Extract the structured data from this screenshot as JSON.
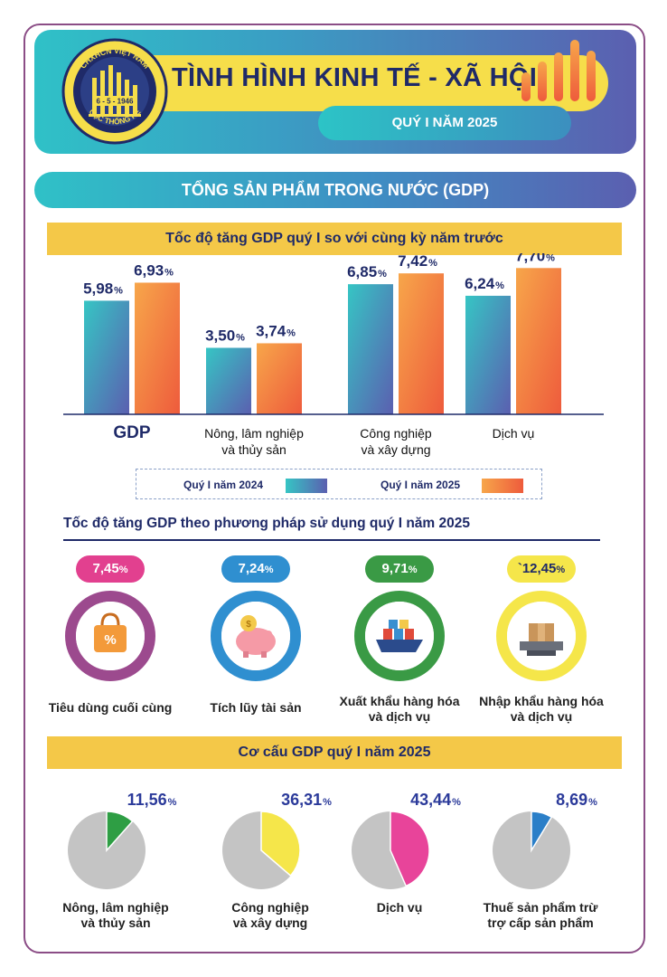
{
  "header": {
    "title": "TÌNH HÌNH KINH TẾ - XÃ HỘI",
    "subtitle": "QUÝ I NĂM 2025",
    "logo_text_top": "CHXHCN VIỆT NAM",
    "logo_text_bottom": "CỤC THỐNG KÊ",
    "logo_date": "6 - 5 - 1946"
  },
  "section_title": "TỔNG SẢN PHẨM TRONG NƯỚC (GDP)",
  "growth_title": "Tốc độ tăng GDP quý I so với cùng kỳ năm trước",
  "legend": {
    "series_2024": "Quý I năm 2024",
    "series_2025": "Quý I năm 2025"
  },
  "chart_data": [
    {
      "type": "bar",
      "title": "Tốc độ tăng GDP quý I so với cùng kỳ năm trước",
      "categories": [
        "GDP",
        "Nông, lâm nghiệp và thủy sản",
        "Công nghiệp và xây dựng",
        "Dịch vụ"
      ],
      "category_lines": [
        [
          "GDP"
        ],
        [
          "Nông, lâm nghiệp",
          "và thủy sản"
        ],
        [
          "Công nghiệp",
          "và xây dựng"
        ],
        [
          "Dịch vụ"
        ]
      ],
      "series": [
        {
          "name": "Quý I năm 2024",
          "values": [
            5.98,
            3.5,
            6.85,
            6.24
          ],
          "labels": [
            "5,98",
            "3,50",
            "6,85",
            "6,24"
          ]
        },
        {
          "name": "Quý I năm 2025",
          "values": [
            6.93,
            3.74,
            7.42,
            7.7
          ],
          "labels": [
            "6,93",
            "3,74",
            "7,42",
            "7,70"
          ]
        }
      ],
      "unit": "%",
      "ylim": [
        0,
        8
      ],
      "legend_position": "bottom"
    },
    {
      "type": "pie",
      "title": "Cơ cấu GDP quý I năm 2025",
      "slices": [
        {
          "name": "Nông, lâm nghiệp và thủy sản",
          "lines": [
            "Nông, lâm nghiệp",
            "và thủy sản"
          ],
          "value": 11.56,
          "label": "11,56",
          "color": "#2e9e44"
        },
        {
          "name": "Công nghiệp và xây dựng",
          "lines": [
            "Công nghiệp",
            "và xây dựng"
          ],
          "value": 36.31,
          "label": "36,31",
          "color": "#f5e64a"
        },
        {
          "name": "Dịch vụ",
          "lines": [
            "Dịch vụ"
          ],
          "value": 43.44,
          "label": "43,44",
          "color": "#e8449a"
        },
        {
          "name": "Thuế sản phẩm trừ trợ cấp sản phẩm",
          "lines": [
            "Thuế sản phẩm trừ",
            "trợ cấp sản phẩm"
          ],
          "value": 8.69,
          "label": "8,69",
          "color": "#2b7fc8"
        }
      ],
      "unit": "%",
      "rest_color": "#c4c4c4"
    }
  ],
  "utilization": {
    "title": "Tốc độ tăng GDP theo phương pháp sử dụng quý I năm 2025",
    "items": [
      {
        "value": "7,45",
        "unit": "%",
        "label_lines": [
          "Tiêu dùng cuối cùng"
        ],
        "color": "#e2408f",
        "ring": "#9c4a8e",
        "icon": "shopping-bag-icon"
      },
      {
        "value": "7,24",
        "unit": "%",
        "label_lines": [
          "Tích lũy tài sản"
        ],
        "color": "#2f8fd0",
        "ring": "#2f8fd0",
        "icon": "piggy-bank-icon"
      },
      {
        "value": "9,71",
        "unit": "%",
        "label_lines": [
          "Xuất khẩu hàng hóa",
          "và dịch vụ"
        ],
        "color": "#3a9a45",
        "ring": "#3a9a45",
        "icon": "cargo-ship-icon"
      },
      {
        "value": "`12,45",
        "unit": "%",
        "label_lines": [
          "Nhập khẩu hàng hóa",
          "và dịch vụ"
        ],
        "color": "#f5e64a",
        "ring": "#f5e64a",
        "icon": "scale-box-icon"
      }
    ]
  },
  "structure_title": "Cơ cấu GDP quý I năm 2025",
  "colors": {
    "navy": "#1f2a68",
    "teal_start": "#36c5c4",
    "teal_end": "#5b5fb0",
    "orange_start": "#f7a64a",
    "orange_end": "#ee5b3c",
    "banner_yellow": "#f4c848"
  }
}
